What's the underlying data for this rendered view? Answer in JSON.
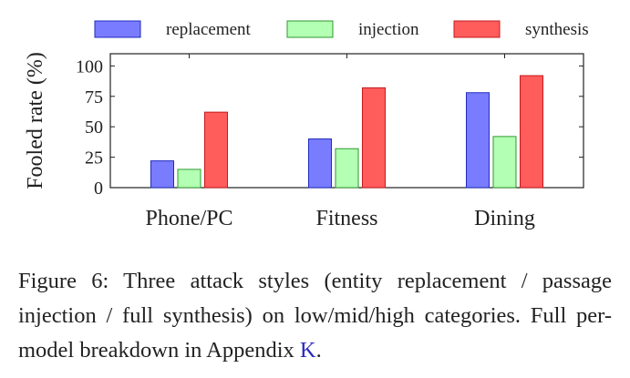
{
  "chart_data": {
    "type": "bar",
    "title": "",
    "xlabel": "",
    "ylabel": "Fooled rate (%)",
    "ylim": [
      0,
      110
    ],
    "yticks": [
      0,
      25,
      50,
      75,
      100
    ],
    "categories": [
      "Phone/PC",
      "Fitness",
      "Dining"
    ],
    "series": [
      {
        "name": "replacement",
        "color": "#7a7cff",
        "stroke": "#1f2bbd",
        "values": [
          22,
          40,
          78
        ]
      },
      {
        "name": "injection",
        "color": "#b3ffb3",
        "stroke": "#2e9a2e",
        "values": [
          15,
          32,
          42
        ]
      },
      {
        "name": "synthesis",
        "color": "#ff5c5c",
        "stroke": "#c41a1a",
        "values": [
          62,
          82,
          92
        ]
      }
    ],
    "legend": "top, horizontal, above plot",
    "grid": false
  },
  "caption": {
    "text_before": "Figure 6: Three attack styles (entity replacement / passage injection / full synthesis) on low/mid/high categories. Full per-model breakdown in Appendix ",
    "ref": "K",
    "text_after": "."
  }
}
